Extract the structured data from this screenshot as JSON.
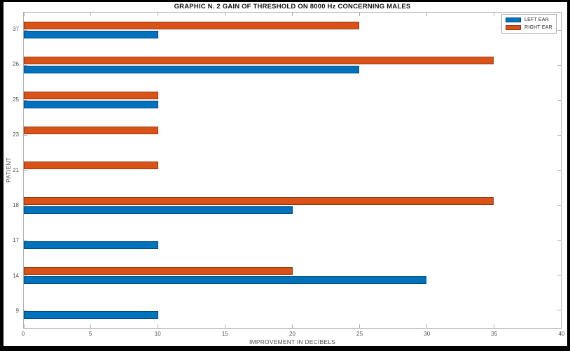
{
  "chart_data": {
    "type": "bar",
    "orientation": "horizontal",
    "title": "GRAPHIC N. 2 GAIN OF THRESHOLD ON 8000 Hz CONCERNING MALES",
    "xlabel": "IMPROVEMENT IN DECIBELS",
    "ylabel": "PATIENT",
    "categories": [
      "37",
      "26",
      "25",
      "23",
      "21",
      "18",
      "17",
      "14",
      "9"
    ],
    "series": [
      {
        "name": "LEFT EAR",
        "color": "#0072BD",
        "values": [
          10,
          25,
          10,
          0,
          0,
          20,
          10,
          30,
          10
        ]
      },
      {
        "name": "RIGHT EAR",
        "color": "#D95319",
        "values": [
          25,
          35,
          10,
          10,
          10,
          35,
          0,
          20,
          0
        ]
      }
    ],
    "xlim": [
      0,
      40
    ],
    "xticks": [
      0,
      5,
      10,
      15,
      20,
      25,
      30,
      35,
      40
    ],
    "grid": false,
    "legend_position": "top-right",
    "axis_color": "#adadad",
    "tick_label_color": "#4d4d4d",
    "frame_color": "#000000",
    "background_color": "#ffffff"
  }
}
